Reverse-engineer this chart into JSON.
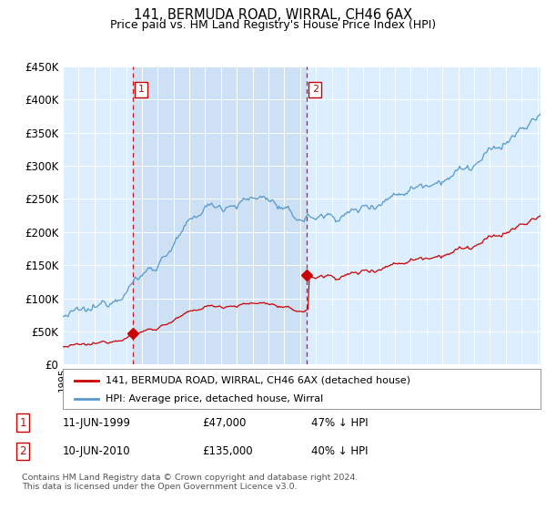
{
  "title": "141, BERMUDA ROAD, WIRRAL, CH46 6AX",
  "subtitle": "Price paid vs. HM Land Registry's House Price Index (HPI)",
  "property_label": "141, BERMUDA ROAD, WIRRAL, CH46 6AX (detached house)",
  "hpi_label": "HPI: Average price, detached house, Wirral",
  "footnote": "Contains HM Land Registry data © Crown copyright and database right 2024.\nThis data is licensed under the Open Government Licence v3.0.",
  "sale1_date": "11-JUN-1999",
  "sale1_price": "£47,000",
  "sale1_pct": "47% ↓ HPI",
  "sale2_date": "10-JUN-2010",
  "sale2_price": "£135,000",
  "sale2_pct": "40% ↓ HPI",
  "sale1_year": 1999.44,
  "sale1_value": 47000,
  "sale2_year": 2010.44,
  "sale2_value": 135000,
  "property_color": "#cc0000",
  "hpi_color": "#5599cc",
  "plot_bg": "#ddeeff",
  "shade_bg": "#cce0f5",
  "ylim": [
    0,
    450000
  ],
  "xlim_start": 1995.0,
  "xlim_end": 2025.2,
  "vline_color": "#cc0000",
  "title_fontsize": 10.5,
  "subtitle_fontsize": 9
}
